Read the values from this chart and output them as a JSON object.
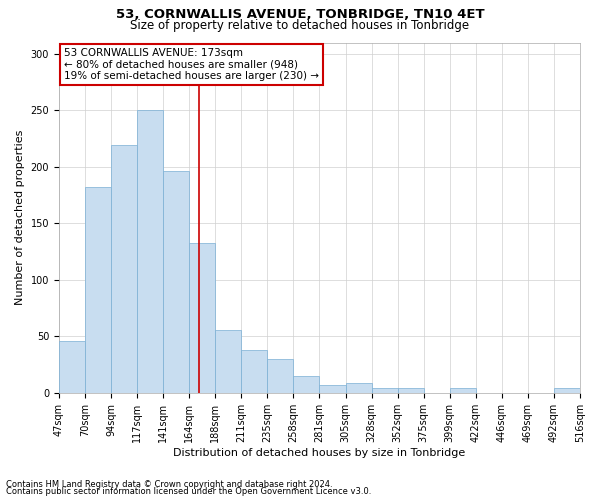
{
  "title": "53, CORNWALLIS AVENUE, TONBRIDGE, TN10 4ET",
  "subtitle": "Size of property relative to detached houses in Tonbridge",
  "xlabel": "Distribution of detached houses by size in Tonbridge",
  "ylabel": "Number of detached properties",
  "categories": [
    "47sqm",
    "70sqm",
    "94sqm",
    "117sqm",
    "141sqm",
    "164sqm",
    "188sqm",
    "211sqm",
    "235sqm",
    "258sqm",
    "281sqm",
    "305sqm",
    "328sqm",
    "352sqm",
    "375sqm",
    "399sqm",
    "422sqm",
    "446sqm",
    "469sqm",
    "492sqm",
    "516sqm"
  ],
  "hist_heights": [
    46,
    182,
    219,
    250,
    196,
    133,
    56,
    38,
    30,
    15,
    7,
    9,
    4,
    4,
    0,
    4,
    0,
    0,
    0,
    4
  ],
  "bar_color": "#c8ddf0",
  "bar_edge_color": "#7aafd4",
  "redline_color": "#cc0000",
  "grid_color": "#d0d0d0",
  "annotation_text": "53 CORNWALLIS AVENUE: 173sqm\n← 80% of detached houses are smaller (948)\n19% of semi-detached houses are larger (230) →",
  "annotation_box_facecolor": "#ffffff",
  "annotation_box_edgecolor": "#cc0000",
  "footer1": "Contains HM Land Registry data © Crown copyright and database right 2024.",
  "footer2": "Contains public sector information licensed under the Open Government Licence v3.0.",
  "ylim": [
    0,
    310
  ],
  "yticks": [
    0,
    50,
    100,
    150,
    200,
    250,
    300
  ],
  "title_fontsize": 9.5,
  "subtitle_fontsize": 8.5,
  "tick_fontsize": 7,
  "ylabel_fontsize": 8,
  "xlabel_fontsize": 8,
  "annotation_fontsize": 7.5,
  "footer_fontsize": 6
}
